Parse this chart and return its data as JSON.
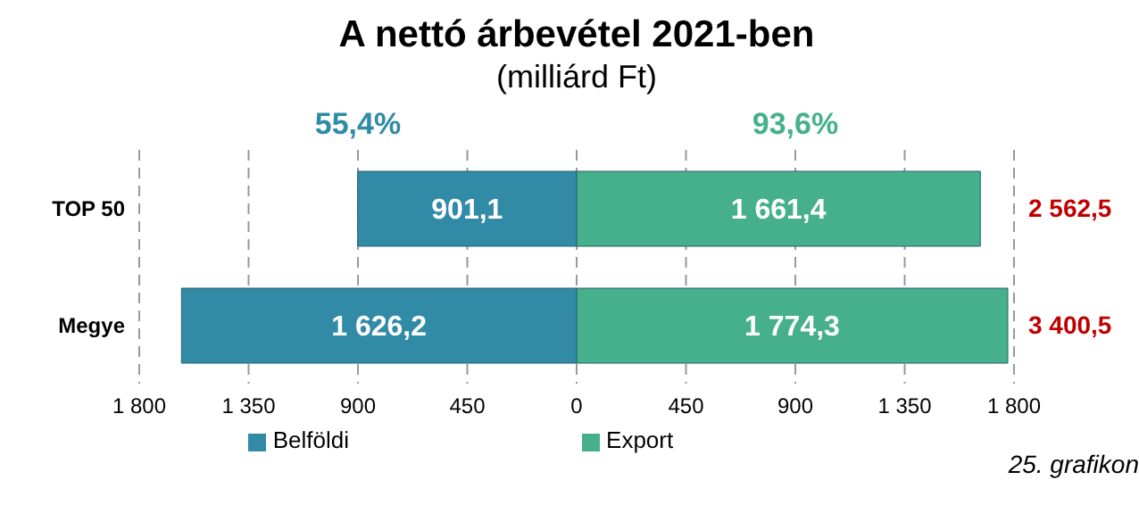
{
  "chart_data": {
    "type": "bar",
    "orientation": "horizontal",
    "title": "A nettó árbevétel 2021-ben",
    "subtitle": "(milliárd Ft)",
    "categories": [
      "TOP 50",
      "Megye"
    ],
    "series": [
      {
        "name": "Belföldi",
        "color": "#318ba6",
        "values": [
          901.1,
          1626.2
        ],
        "base": [
          -901.1,
          -1626.2
        ],
        "value_labels": [
          "901,1",
          "1 626,2"
        ]
      },
      {
        "name": "Export",
        "color": "#46b08c",
        "values": [
          1661.4,
          1774.3
        ],
        "base": [
          0,
          0
        ],
        "value_labels": [
          "1 661,4",
          "1 774,3"
        ]
      }
    ],
    "totals": [
      "2 562,5",
      "3 400,5"
    ],
    "xlim": [
      -1800,
      1800
    ],
    "xticks": [
      {
        "value": -1800,
        "label": "1 800"
      },
      {
        "value": -1350,
        "label": "1 350"
      },
      {
        "value": -900,
        "label": "900"
      },
      {
        "value": -450,
        "label": "450"
      },
      0,
      450,
      900,
      {
        "value": 1350,
        "label": "1 350"
      },
      {
        "value": 1800,
        "label": "1 800"
      }
    ],
    "grid": "x",
    "legend": "bottom",
    "annotations": [
      "55,4%",
      "93,6%",
      "25. grafikon"
    ]
  }
}
